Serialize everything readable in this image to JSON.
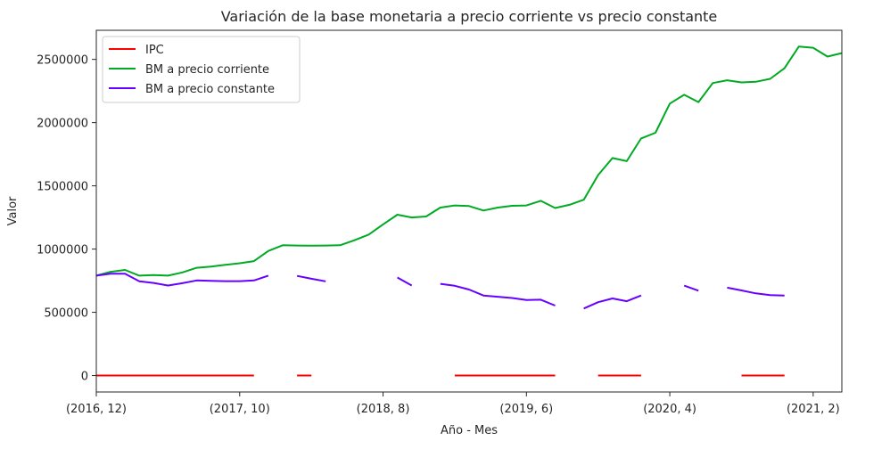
{
  "chart_data": {
    "type": "line",
    "title": "Variación de la base monetaria a precio corriente vs precio constante",
    "xlabel": "Año - Mes",
    "ylabel": "Valor",
    "x_ticks": [
      {
        "label": "(2016, 12)",
        "index": 0
      },
      {
        "label": "(2017, 10)",
        "index": 10
      },
      {
        "label": "(2018, 8)",
        "index": 20
      },
      {
        "label": "(2019, 6)",
        "index": 30
      },
      {
        "label": "(2020, 4)",
        "index": 40
      },
      {
        "label": "(2021, 2)",
        "index": 50
      }
    ],
    "y_ticks": [
      0,
      500000,
      1000000,
      1500000,
      2000000,
      2500000
    ],
    "xlim": [
      0,
      52
    ],
    "ylim": [
      -130000,
      2730000
    ],
    "grid": false,
    "legend_position": "top-left",
    "series": [
      {
        "name": "IPC",
        "color": "#ff0000",
        "values": [
          0,
          0,
          0,
          0,
          0,
          0,
          0,
          0,
          0,
          0,
          0,
          0,
          null,
          null,
          0,
          0,
          null,
          null,
          null,
          null,
          null,
          null,
          0,
          null,
          null,
          0,
          0,
          0,
          0,
          0,
          0,
          0,
          0,
          null,
          null,
          0,
          0,
          0,
          0,
          null,
          null,
          null,
          0,
          null,
          null,
          0,
          0,
          0,
          0,
          null,
          null,
          null,
          null
        ]
      },
      {
        "name": "BM a precio corriente",
        "color": "#00aa22",
        "values": [
          790000,
          820000,
          835000,
          790000,
          795000,
          790000,
          815000,
          852000,
          862000,
          875000,
          888000,
          905000,
          985000,
          1030000,
          1028000,
          1027000,
          1028000,
          1030000,
          1070000,
          1115000,
          1195000,
          1272000,
          1250000,
          1258000,
          1328000,
          1345000,
          1340000,
          1305000,
          1328000,
          1342000,
          1345000,
          1382000,
          1325000,
          1350000,
          1390000,
          1585000,
          1720000,
          1695000,
          1875000,
          1920000,
          2150000,
          2220000,
          2162000,
          2313000,
          2335000,
          2318000,
          2323000,
          2346000,
          2430000,
          2602000,
          2592000,
          2522000,
          2550000
        ]
      },
      {
        "name": "BM a precio constante",
        "color": "#6600ff",
        "values": [
          790000,
          805000,
          805000,
          745000,
          732000,
          712000,
          730000,
          752000,
          749000,
          746000,
          746000,
          752000,
          790000,
          null,
          788000,
          765000,
          745000,
          null,
          null,
          null,
          null,
          775000,
          712000,
          null,
          725000,
          710000,
          680000,
          633000,
          623000,
          613000,
          598000,
          600000,
          553000,
          null,
          530000,
          580000,
          610000,
          588000,
          633000,
          null,
          null,
          711000,
          671000,
          null,
          695000,
          673000,
          650000,
          636000,
          633000,
          null,
          null,
          null,
          null
        ]
      }
    ]
  }
}
